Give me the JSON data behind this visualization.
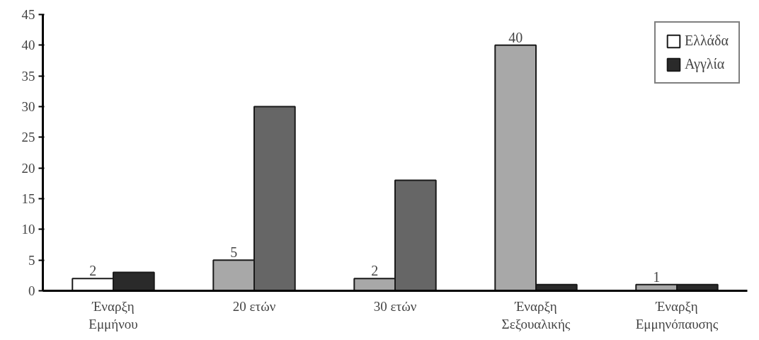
{
  "chart_data": {
    "type": "bar",
    "categories": [
      "Έναρξη\nΕμμήνου",
      "20 ετών",
      "30 ετών",
      "Έναρξη\nΣεξουαλικής",
      "Έναρξη\nΕμμηνόπαυσης"
    ],
    "series": [
      {
        "name": "Ελλάδα",
        "colors": [
          "#ffffff",
          "#a8a8a8",
          "#a8a8a8",
          "#a8a8a8",
          "#a8a8a8"
        ],
        "values": [
          2,
          5,
          2,
          40,
          1
        ],
        "value_labels": [
          "2",
          "5",
          "2",
          "40",
          "1"
        ]
      },
      {
        "name": "Αγγλία",
        "colors": [
          "#2a2a2a",
          "#666666",
          "#666666",
          "#2a2a2a",
          "#2a2a2a"
        ],
        "values": [
          3,
          30,
          18,
          1,
          1
        ]
      }
    ],
    "ylim": [
      0,
      45
    ],
    "yticks": [
      0,
      5,
      10,
      15,
      20,
      25,
      30,
      35,
      40,
      45
    ],
    "legend": "top right"
  }
}
